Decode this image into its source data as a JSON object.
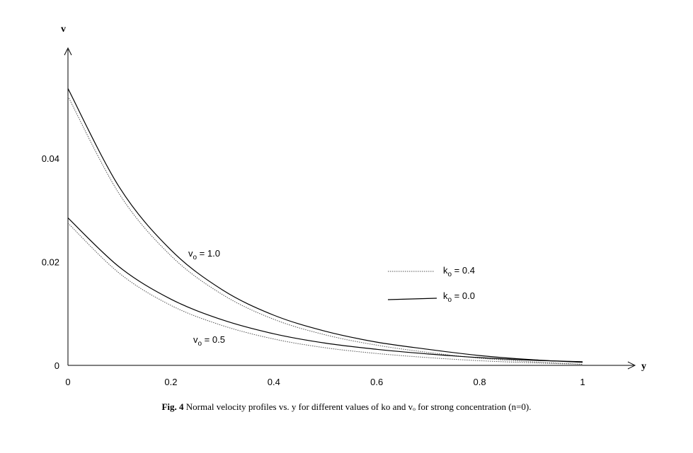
{
  "chart_data": {
    "type": "line",
    "xlabel": "y",
    "ylabel": "v",
    "xlim": [
      0,
      1
    ],
    "ylim": [
      0,
      0.056
    ],
    "x_ticks": [
      "0",
      "0.2",
      "0.4",
      "0.6",
      "0.8",
      "1"
    ],
    "y_ticks": [
      "0",
      "0.02",
      "0.04"
    ],
    "grid": false,
    "legend_placement": "right",
    "legend": [
      {
        "prefix": "k",
        "sub": "o",
        "suffix": " = 0.4",
        "style": "dotted"
      },
      {
        "prefix": "k",
        "sub": "o",
        "suffix": " = 0.0",
        "style": "solid"
      }
    ],
    "annotations": [
      {
        "prefix": "v",
        "sub": "o",
        "suffix": " = 1.0"
      },
      {
        "prefix": "v",
        "sub": "o",
        "suffix": " = 0.5"
      }
    ],
    "x": [
      0,
      0.1,
      0.2,
      0.3,
      0.4,
      0.5,
      0.6,
      0.7,
      0.8,
      0.9,
      1.0
    ],
    "series": [
      {
        "group": "vo = 1.0",
        "ko": "0.0",
        "style": "solid",
        "values": [
          0.0535,
          0.0344,
          0.0223,
          0.0146,
          0.0097,
          0.0066,
          0.0045,
          0.0031,
          0.0019,
          0.0011,
          0.0006
        ]
      },
      {
        "group": "vo = 1.0",
        "ko": "0.4",
        "style": "dotted",
        "values": [
          0.052,
          0.0331,
          0.0212,
          0.0137,
          0.0089,
          0.0059,
          0.0039,
          0.0025,
          0.0014,
          0.0007,
          0.0002
        ]
      },
      {
        "group": "vo = 0.5",
        "ko": "0.0",
        "style": "solid",
        "values": [
          0.0285,
          0.019,
          0.0128,
          0.0088,
          0.0061,
          0.0043,
          0.0031,
          0.0022,
          0.0015,
          0.001,
          0.0007
        ]
      },
      {
        "group": "vo = 0.5",
        "ko": "0.4",
        "style": "dotted",
        "values": [
          0.0275,
          0.0178,
          0.0116,
          0.0077,
          0.0051,
          0.0034,
          0.0023,
          0.0015,
          0.0009,
          0.0005,
          0.0002
        ]
      }
    ]
  },
  "caption": {
    "label": "Fig.  4",
    "text": " Normal velocity profiles vs. y for different values of ko and vₒ for strong concentration  (n=0)."
  }
}
